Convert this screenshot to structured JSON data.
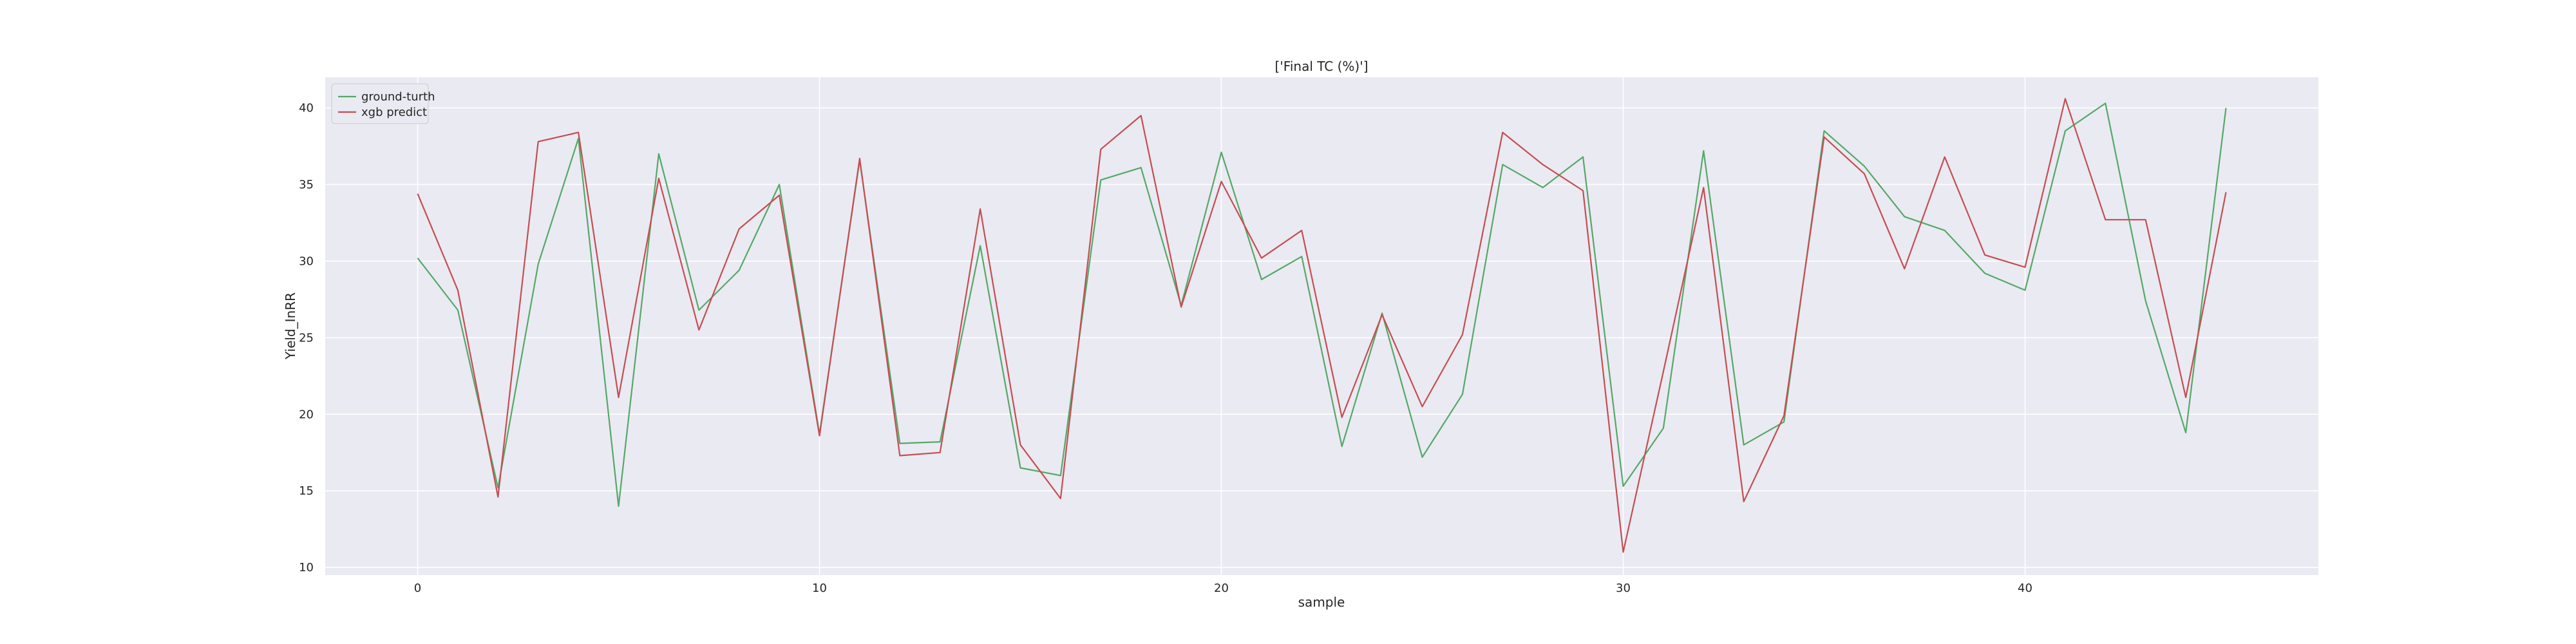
{
  "chart_data": {
    "type": "line",
    "title": "['Final TC (%)']",
    "xlabel": "sample",
    "ylabel": "Yield_InRR",
    "xlim": [
      -2.3,
      47.3
    ],
    "ylim": [
      9.5,
      42.0
    ],
    "xticks": [
      0,
      10,
      20,
      30,
      40
    ],
    "yticks": [
      10,
      15,
      20,
      25,
      30,
      35,
      40
    ],
    "grid": true,
    "legend_position": "top-left",
    "colors": {
      "plot_background": "#eaeaf2",
      "grid": "#ffffff",
      "ground_truth": "#55a868",
      "prediction": "#c44e52"
    },
    "x": [
      0,
      1,
      2,
      3,
      4,
      5,
      6,
      7,
      8,
      9,
      10,
      11,
      12,
      13,
      14,
      15,
      16,
      17,
      18,
      19,
      20,
      21,
      22,
      23,
      24,
      25,
      26,
      27,
      28,
      29,
      30,
      31,
      32,
      33,
      34,
      35,
      36,
      37,
      38,
      39,
      40,
      41,
      42,
      43,
      44,
      45
    ],
    "series": [
      {
        "name": "ground-turth",
        "color": "#55a868",
        "values": [
          30.2,
          26.8,
          15.2,
          29.8,
          38.0,
          14.0,
          37.0,
          26.8,
          29.4,
          35.0,
          18.7,
          36.6,
          18.1,
          18.2,
          31.0,
          16.5,
          16.0,
          35.3,
          36.1,
          27.1,
          37.1,
          28.8,
          30.3,
          17.9,
          26.6,
          17.2,
          21.3,
          36.3,
          34.8,
          36.8,
          15.3,
          19.1,
          37.2,
          18.0,
          19.5,
          38.5,
          36.2,
          32.9,
          32.0,
          29.2,
          28.1,
          38.5,
          40.3,
          27.4,
          18.8,
          40.0
        ]
      },
      {
        "name": "xgb predict",
        "color": "#c44e52",
        "values": [
          34.4,
          28.1,
          14.6,
          37.8,
          38.4,
          21.1,
          35.4,
          25.5,
          32.1,
          34.3,
          18.6,
          36.7,
          17.3,
          17.5,
          33.4,
          18.0,
          14.5,
          37.3,
          39.5,
          27.0,
          35.2,
          30.2,
          32.0,
          19.8,
          26.5,
          20.5,
          25.2,
          38.4,
          36.3,
          34.6,
          11.0,
          22.8,
          34.8,
          14.3,
          19.9,
          38.1,
          35.7,
          29.5,
          36.8,
          30.4,
          29.6,
          40.6,
          32.7,
          32.7,
          21.1,
          34.5
        ]
      }
    ]
  }
}
